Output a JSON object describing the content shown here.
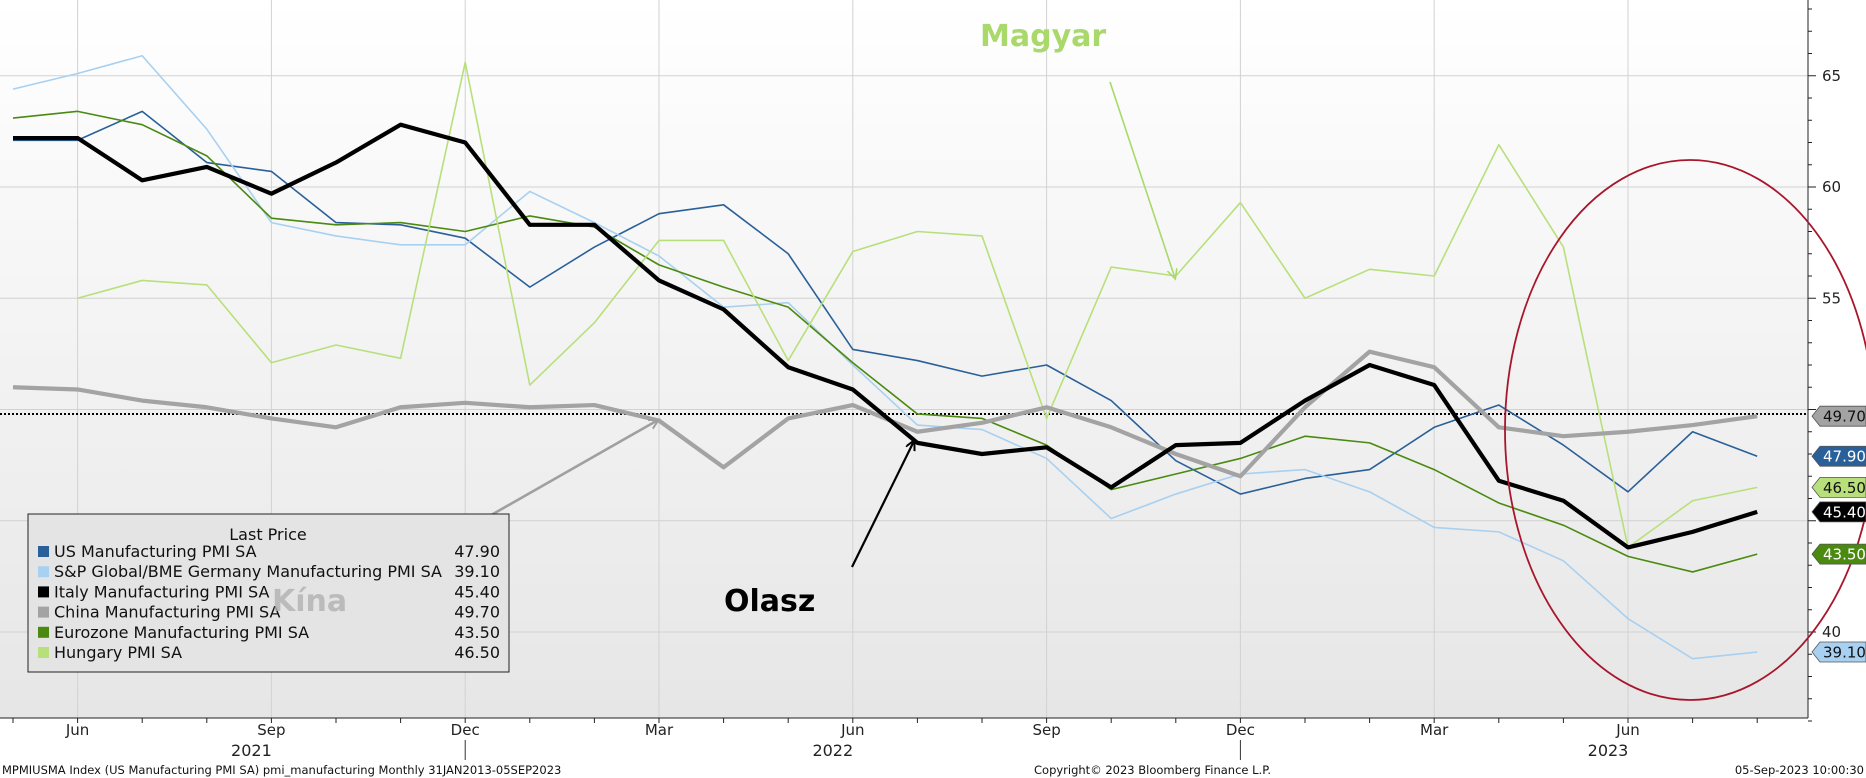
{
  "chart_data": {
    "type": "line",
    "ylim": [
      35.5,
      69
    ],
    "yticks": [
      40,
      45,
      50,
      55,
      60,
      65
    ],
    "ytick_labels": [
      "40",
      "",
      "",
      "55",
      "60",
      "65"
    ],
    "x_months": [
      "2021-05",
      "2021-06",
      "2021-07",
      "2021-08",
      "2021-09",
      "2021-10",
      "2021-11",
      "2021-12",
      "2022-01",
      "2022-02",
      "2022-03",
      "2022-04",
      "2022-05",
      "2022-06",
      "2022-07",
      "2022-08",
      "2022-09",
      "2022-10",
      "2022-11",
      "2022-12",
      "2023-01",
      "2023-02",
      "2023-03",
      "2023-04",
      "2023-05",
      "2023-06",
      "2023-07",
      "2023-08"
    ],
    "x_tick_labels": [
      {
        "month": "2021-06",
        "label": "Jun"
      },
      {
        "month": "2021-09",
        "label": "Sep"
      },
      {
        "month": "2021-12",
        "label": "Dec"
      },
      {
        "month": "2022-03",
        "label": "Mar"
      },
      {
        "month": "2022-06",
        "label": "Jun"
      },
      {
        "month": "2022-09",
        "label": "Sep"
      },
      {
        "month": "2022-12",
        "label": "Dec"
      },
      {
        "month": "2023-03",
        "label": "Mar"
      },
      {
        "month": "2023-06",
        "label": "Jun"
      }
    ],
    "year_labels": [
      {
        "month": "2021-09",
        "label": "2021"
      },
      {
        "month": "2022-06",
        "label": "2022"
      },
      {
        "month": "2023-06",
        "label": "2023"
      }
    ],
    "year_separators": [
      "2021-12",
      "2022-12"
    ],
    "reference_line": 49.8,
    "series": [
      {
        "name": "US Manufacturing PMI SA",
        "color": "#2a6099",
        "width": 1.6,
        "last": "47.90",
        "values": [
          62.1,
          62.1,
          63.4,
          61.1,
          60.7,
          58.4,
          58.3,
          57.7,
          55.5,
          57.3,
          58.8,
          59.2,
          57.0,
          52.7,
          52.2,
          51.5,
          52.0,
          50.4,
          47.7,
          46.2,
          46.9,
          47.3,
          49.2,
          50.2,
          48.4,
          46.3,
          49.0,
          47.9
        ]
      },
      {
        "name": "S&P Global/BME Germany Manufacturing PMI SA",
        "color": "#a8d0f0",
        "width": 1.6,
        "last": "39.10",
        "values": [
          64.4,
          65.1,
          65.9,
          62.6,
          58.4,
          57.8,
          57.4,
          57.4,
          59.8,
          58.4,
          56.9,
          54.6,
          54.8,
          52.0,
          49.3,
          49.1,
          47.8,
          45.1,
          46.2,
          47.1,
          47.3,
          46.3,
          44.7,
          44.5,
          43.2,
          40.6,
          38.8,
          39.1
        ]
      },
      {
        "name": "Italy Manufacturing PMI SA",
        "color": "#000000",
        "width": 4.2,
        "last": "45.40",
        "values": [
          62.2,
          62.2,
          60.3,
          60.9,
          59.7,
          61.1,
          62.8,
          62.0,
          58.3,
          58.3,
          55.8,
          54.5,
          51.9,
          50.9,
          48.5,
          48.0,
          48.3,
          46.5,
          48.4,
          48.5,
          50.4,
          52.0,
          51.1,
          46.8,
          45.9,
          43.8,
          44.5,
          45.4
        ]
      },
      {
        "name": "China Manufacturing PMI SA",
        "color": "#a3a3a3",
        "width": 4.2,
        "last": "49.70",
        "values": [
          51.0,
          50.9,
          50.4,
          50.1,
          49.6,
          49.2,
          50.1,
          50.3,
          50.1,
          50.2,
          49.5,
          47.4,
          49.6,
          50.2,
          49.0,
          49.4,
          50.1,
          49.2,
          48.0,
          47.0,
          50.1,
          52.6,
          51.9,
          49.2,
          48.8,
          49.0,
          49.3,
          49.7
        ]
      },
      {
        "name": "Eurozone Manufacturing PMI SA",
        "color": "#4a8a10",
        "width": 1.6,
        "last": "43.50",
        "values": [
          63.1,
          63.4,
          62.8,
          61.4,
          58.6,
          58.3,
          58.4,
          58.0,
          58.7,
          58.2,
          56.5,
          55.5,
          54.6,
          52.1,
          49.8,
          49.6,
          48.4,
          46.4,
          47.1,
          47.8,
          48.8,
          48.5,
          47.3,
          45.8,
          44.8,
          43.4,
          42.7,
          43.5
        ]
      },
      {
        "name": "Hungary PMI SA",
        "color": "#b8e07a",
        "width": 1.6,
        "last": "46.50",
        "values": [
          55.0,
          55.8,
          55.6,
          52.1,
          52.9,
          52.3,
          65.6,
          51.1,
          53.9,
          57.6,
          57.6,
          52.2,
          57.1,
          58.0,
          57.8,
          49.6,
          56.4,
          56.0,
          59.3,
          55.0,
          56.3,
          56.0,
          61.9,
          57.3,
          43.8,
          45.9,
          46.5
        ]
      }
    ],
    "series_start_offsets": [
      0,
      0,
      0,
      0,
      0,
      1
    ],
    "legend": {
      "title": "Last Price",
      "placement": "bottom-left"
    },
    "annotations": [
      {
        "text": "Magyar",
        "color": "#a8d96a"
      },
      {
        "text": "Olasz",
        "color": "#000000"
      },
      {
        "text": "Kína",
        "color": "#b0b0b0"
      }
    ]
  },
  "footer": {
    "left": "MPMIUSMA Index (US Manufacturing PMI SA) pmi_manufacturing  Monthly 31JAN2013-05SEP2023",
    "center": "Copyright© 2023 Bloomberg Finance L.P.",
    "right": "05-Sep-2023 10:00:30"
  }
}
